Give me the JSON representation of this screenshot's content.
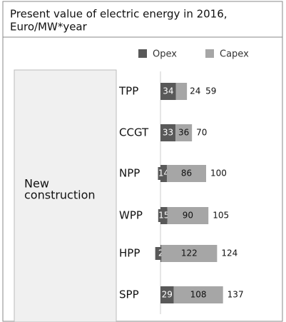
{
  "chart_data": {
    "type": "stacked-bar-horizontal",
    "title": "Present value of electric energy in 2016,",
    "subtitle": "Euro/MW*year",
    "group_label": [
      "New",
      "construction"
    ],
    "categories": [
      "TPP",
      "CCGT",
      "NPP",
      "WPP",
      "HPP",
      "SPP"
    ],
    "series": [
      {
        "name": "Opex",
        "color": "#595959",
        "values": [
          34,
          33,
          14,
          15,
          2,
          29
        ]
      },
      {
        "name": "Capex",
        "color": "#a6a6a6",
        "values": [
          24,
          36,
          86,
          90,
          122,
          108
        ]
      }
    ],
    "totals": [
      59,
      70,
      100,
      105,
      124,
      137
    ],
    "legend": "top"
  }
}
